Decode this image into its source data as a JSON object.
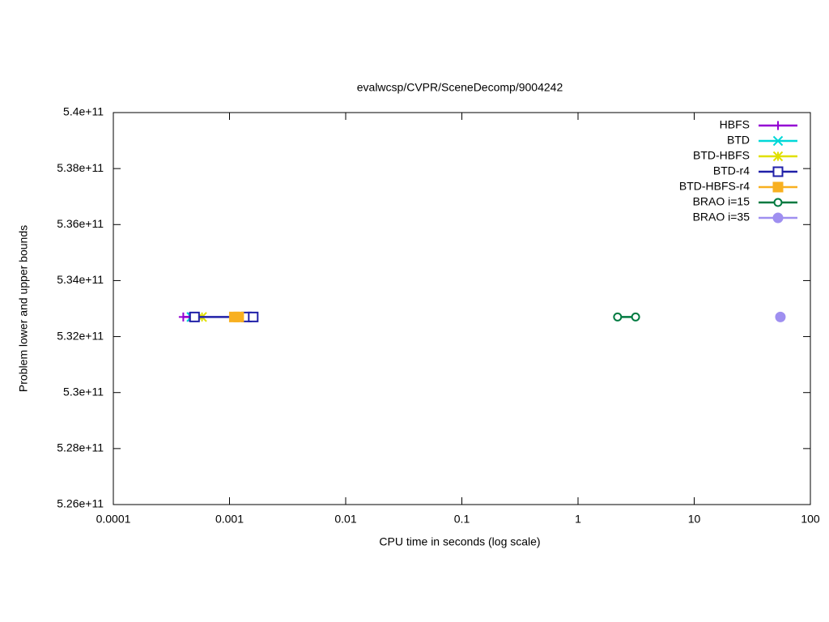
{
  "chart_data": {
    "type": "line",
    "title": "evalwcsp/CVPR/SceneDecomp/9004242",
    "x_label": "CPU time in seconds (log scale)",
    "y_label": "Problem lower and upper bounds",
    "x_log": true,
    "xlim": [
      0.0001,
      100
    ],
    "xticks": [
      0.0001,
      0.001,
      0.01,
      0.1,
      1,
      10,
      100
    ],
    "ylim": [
      526000000000,
      540000000000
    ],
    "yticks": [
      {
        "value": 526000000000,
        "label": "5.26e+11"
      },
      {
        "value": 528000000000,
        "label": "5.28e+11"
      },
      {
        "value": 530000000000,
        "label": "5.3e+11"
      },
      {
        "value": 532000000000,
        "label": "5.32e+11"
      },
      {
        "value": 534000000000,
        "label": "5.34e+11"
      },
      {
        "value": 536000000000,
        "label": "5.36e+11"
      },
      {
        "value": 538000000000,
        "label": "5.38e+11"
      },
      {
        "value": 540000000000,
        "label": "5.4e+11"
      }
    ],
    "legend_position": "top-right",
    "series": [
      {
        "name": "HBFS",
        "color": "#9400d3",
        "marker": "plus",
        "x": [
          0.0004,
          0.00045
        ],
        "values": [
          532700000000,
          532700000000
        ]
      },
      {
        "name": "BTD",
        "color": "#00d8d8",
        "marker": "cross",
        "x": [
          0.00047,
          0.0005
        ],
        "values": [
          532700000000,
          532700000000
        ]
      },
      {
        "name": "BTD-HBFS",
        "color": "#e0e000",
        "marker": "star",
        "x": [
          0.0005,
          0.00058
        ],
        "values": [
          532700000000,
          532700000000
        ]
      },
      {
        "name": "BTD-r4",
        "color": "#2020a8",
        "marker": "square-open",
        "x": [
          0.0005,
          0.0014,
          0.0016
        ],
        "values": [
          532700000000,
          532700000000,
          532700000000
        ]
      },
      {
        "name": "BTD-HBFS-r4",
        "color": "#f8b020",
        "marker": "square",
        "x": [
          0.0011,
          0.0012
        ],
        "values": [
          532700000000,
          532700000000
        ]
      },
      {
        "name": "BRAO i=15",
        "color": "#007a40",
        "marker": "circle-open",
        "x": [
          2.19,
          3.13
        ],
        "values": [
          532700000000,
          532700000000
        ]
      },
      {
        "name": "BRAO i=35",
        "color": "#9f8ff0",
        "marker": "circle",
        "x": [
          55.2
        ],
        "values": [
          532700000000
        ]
      }
    ]
  }
}
